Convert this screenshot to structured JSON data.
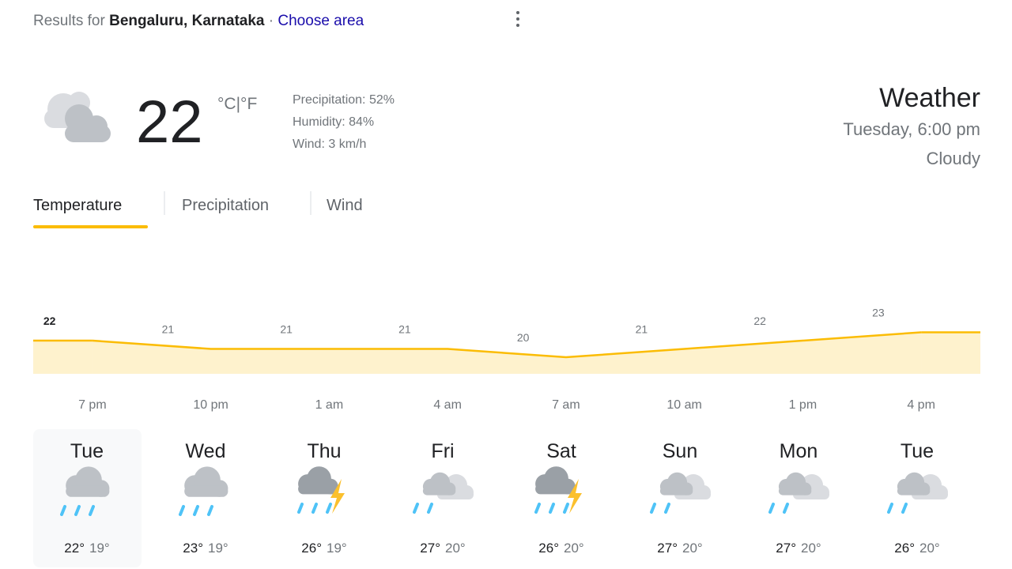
{
  "header": {
    "prefix": "Results for",
    "location": "Bengaluru, Karnataka",
    "separator": "·",
    "link": "Choose area"
  },
  "current": {
    "temperature": "22",
    "unit_c": "°C",
    "unit_separator": "|",
    "unit_f": "°F",
    "precipitation": "Precipitation: 52%",
    "humidity": "Humidity: 84%",
    "wind": "Wind: 3 km/h"
  },
  "summary": {
    "title": "Weather",
    "time": "Tuesday, 6:00 pm",
    "condition": "Cloudy"
  },
  "tabs": [
    "Temperature",
    "Precipitation",
    "Wind"
  ],
  "chart_data": {
    "type": "area",
    "categories": [
      "7 pm",
      "10 pm",
      "1 am",
      "4 am",
      "7 am",
      "10 am",
      "1 pm",
      "4 pm"
    ],
    "values": [
      22,
      21,
      21,
      21,
      20,
      21,
      22,
      23
    ],
    "color": "#fbbc04",
    "ylim": [
      18,
      26
    ]
  },
  "days": [
    {
      "name": "Tue",
      "high": "22°",
      "low": "19°"
    },
    {
      "name": "Wed",
      "high": "23°",
      "low": "19°"
    },
    {
      "name": "Thu",
      "high": "26°",
      "low": "19°"
    },
    {
      "name": "Fri",
      "high": "27°",
      "low": "20°"
    },
    {
      "name": "Sat",
      "high": "26°",
      "low": "20°"
    },
    {
      "name": "Sun",
      "high": "27°",
      "low": "20°"
    },
    {
      "name": "Mon",
      "high": "27°",
      "low": "20°"
    },
    {
      "name": "Tue",
      "high": "26°",
      "low": "20°"
    }
  ]
}
